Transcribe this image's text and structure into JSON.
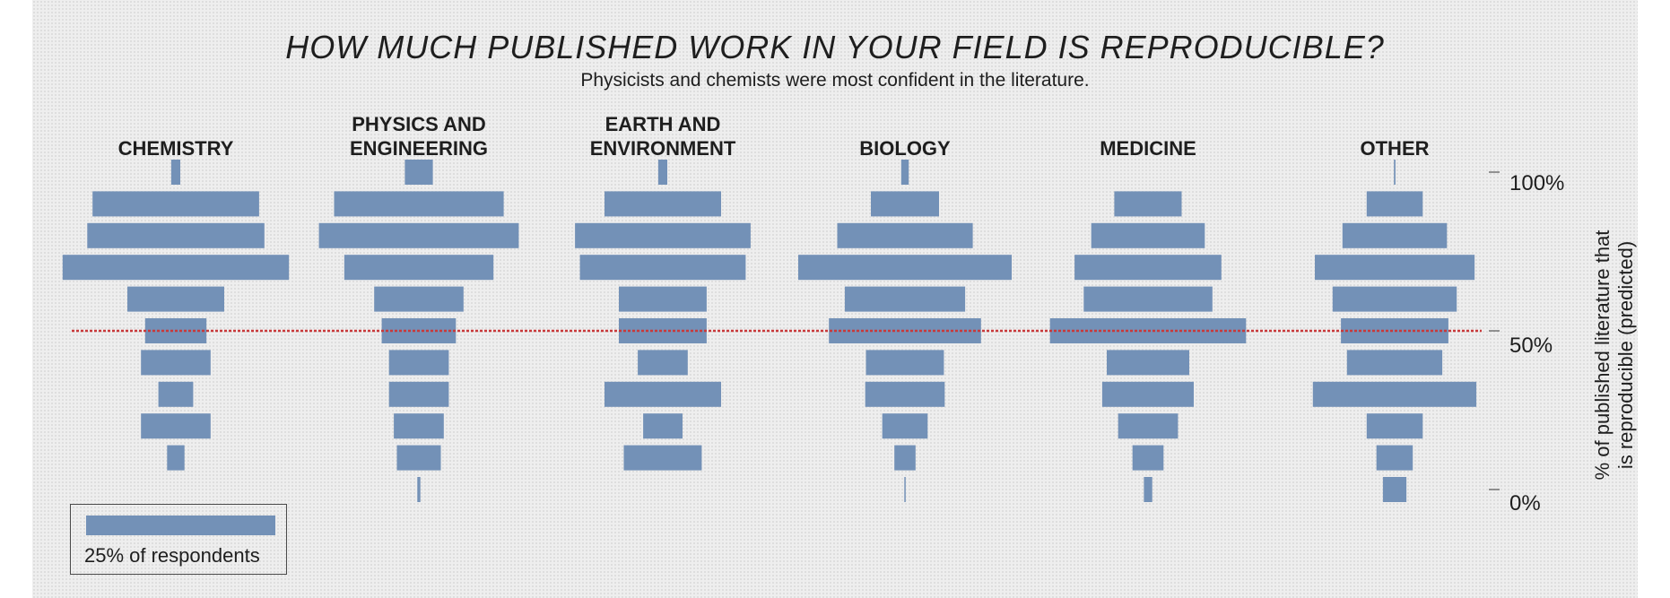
{
  "chart_data": {
    "type": "bar",
    "orientation": "symmetric-horizontal",
    "title": "HOW MUCH PUBLISHED WORK IN YOUR FIELD IS REPRODUCIBLE?",
    "subtitle": "Physicists and chemists were most confident in the literature.",
    "ylabel": "% of published literature that\nis reproducible (predicted)",
    "y_ticks": [
      "100%",
      "50%",
      "0%"
    ],
    "y_categories": [
      "100%",
      "90%",
      "80%",
      "70%",
      "60%",
      "50%",
      "40%",
      "30%",
      "20%",
      "10%",
      "0%"
    ],
    "reference_line": {
      "value": 50,
      "color": "#c8393a"
    },
    "bar_color": "#7391b7",
    "legend": {
      "label": "25% of respondents",
      "value": 25
    },
    "panels": [
      {
        "name": "CHEMISTRY",
        "values": [
          1.2,
          22.0,
          23.4,
          29.9,
          12.8,
          8.1,
          9.2,
          4.6,
          9.2,
          2.3,
          0.0
        ]
      },
      {
        "name": "PHYSICS AND\nENGINEERING",
        "values": [
          3.7,
          22.4,
          26.4,
          19.7,
          11.8,
          9.8,
          7.9,
          7.9,
          6.6,
          5.8,
          0.4
        ]
      },
      {
        "name": "EARTH AND\nENVIRONMENT",
        "values": [
          1.2,
          15.4,
          23.2,
          21.9,
          11.6,
          11.6,
          6.6,
          15.4,
          5.2,
          10.3,
          0.0
        ]
      },
      {
        "name": "BIOLOGY",
        "values": [
          1.0,
          9.0,
          17.9,
          28.2,
          15.9,
          20.1,
          10.3,
          10.5,
          6.0,
          2.8,
          0.1
        ]
      },
      {
        "name": "MEDICINE",
        "values": [
          0.0,
          8.9,
          15.0,
          19.4,
          17.0,
          25.9,
          10.9,
          12.1,
          7.9,
          4.1,
          1.1
        ]
      },
      {
        "name": "OTHER",
        "values": [
          0.2,
          7.4,
          13.8,
          21.1,
          16.4,
          14.2,
          12.6,
          21.6,
          7.4,
          4.8,
          3.1
        ]
      }
    ]
  }
}
